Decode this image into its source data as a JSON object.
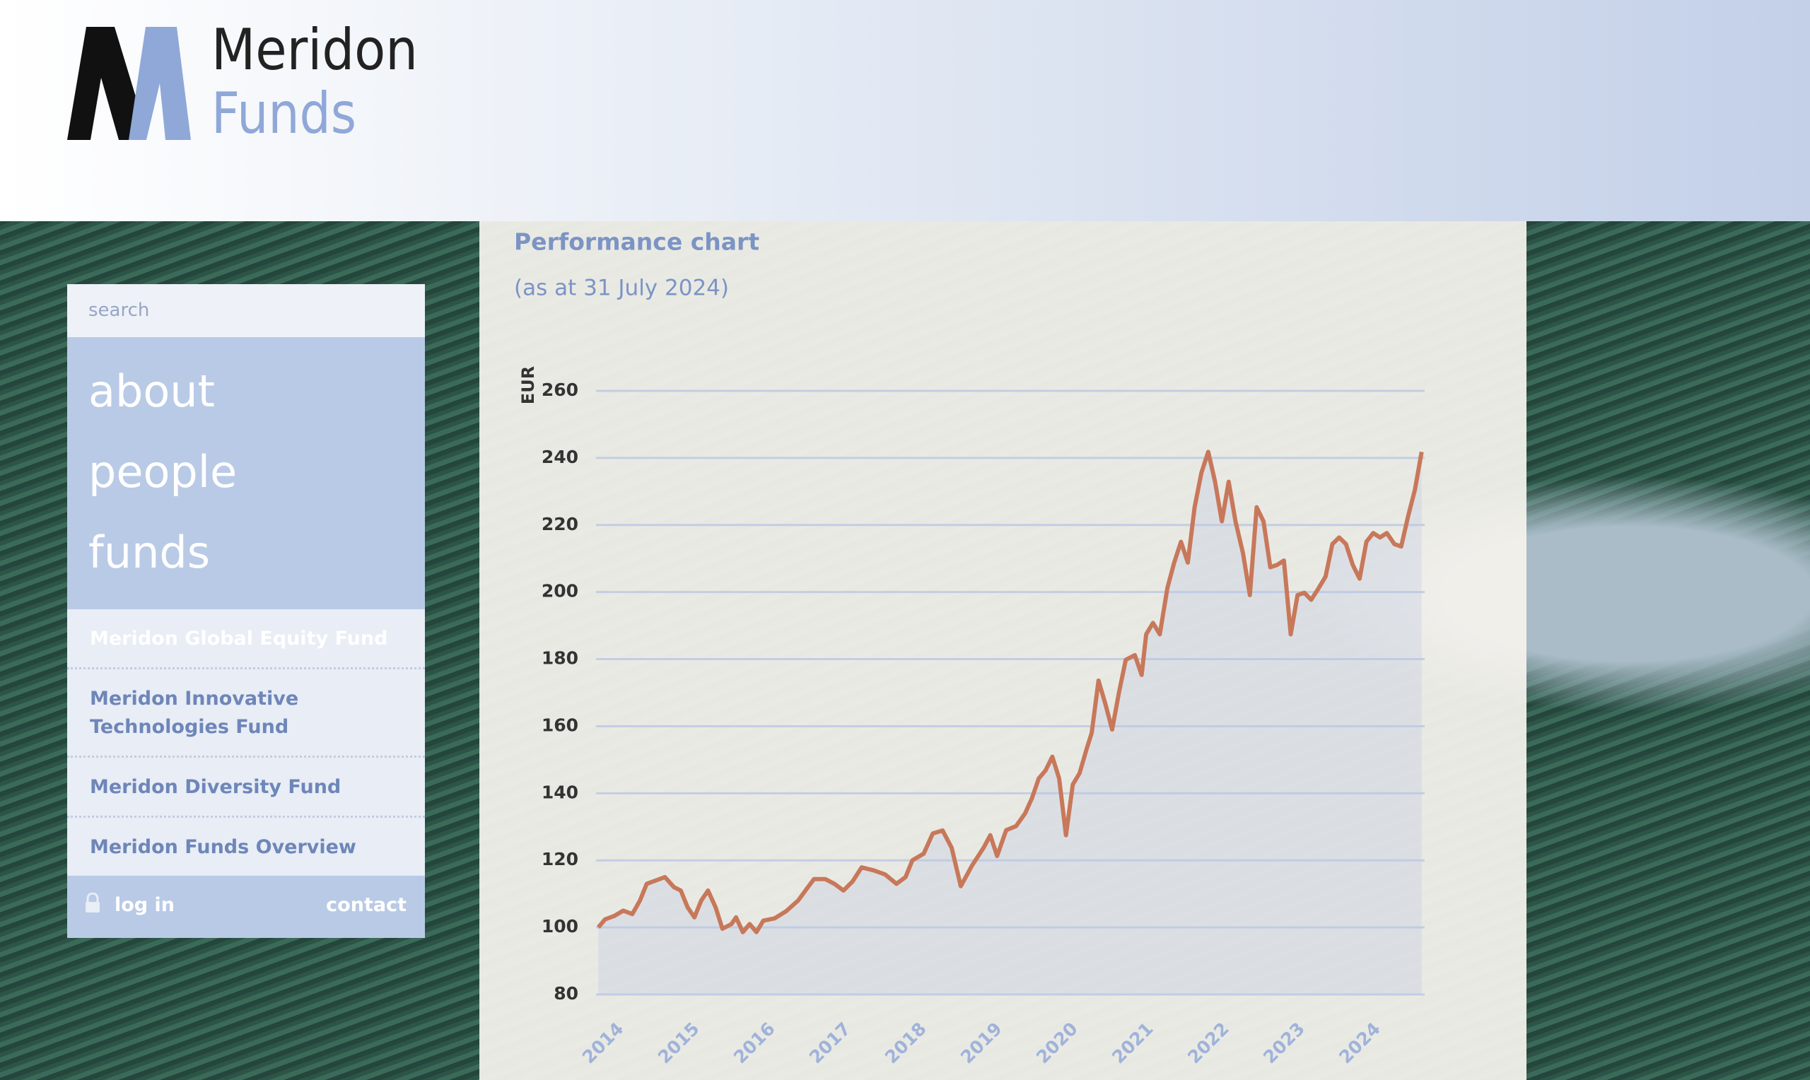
{
  "header": {
    "logo_top": "Meridon",
    "logo_bottom": "Funds"
  },
  "sidebar": {
    "search_placeholder": "search",
    "nav": [
      "about",
      "people",
      "funds"
    ],
    "fund_links": [
      "Meridon Global Equity Fund",
      "Meridon Innovative Technologies Fund",
      "Meridon Diversity Fund",
      "Meridon Funds Overview"
    ],
    "login": "log in",
    "contact": "contact"
  },
  "chart_data": {
    "type": "line",
    "title": "Performance chart",
    "subtitle": "(as at 31 July 2024)",
    "y_label": "EUR",
    "color": "#c8785a",
    "area": true,
    "grid": true,
    "xlim": [
      2013.8,
      2024.75
    ],
    "xticks": [
      2014,
      2015,
      2016,
      2017,
      2018,
      2019,
      2020,
      2021,
      2022,
      2023,
      2024
    ],
    "ylim": [
      80,
      260
    ],
    "yticks": [
      80,
      100,
      120,
      140,
      160,
      180,
      200,
      220,
      240,
      260
    ],
    "x": [
      2013.83,
      2013.92,
      2014.04,
      2014.16,
      2014.28,
      2014.38,
      2014.47,
      2014.59,
      2014.71,
      2014.83,
      2014.92,
      2015.01,
      2015.1,
      2015.19,
      2015.28,
      2015.38,
      2015.47,
      2015.59,
      2015.65,
      2015.74,
      2015.83,
      2015.92,
      2016.01,
      2016.16,
      2016.31,
      2016.47,
      2016.59,
      2016.68,
      2016.83,
      2016.95,
      2017.07,
      2017.19,
      2017.31,
      2017.47,
      2017.62,
      2017.77,
      2017.89,
      2017.98,
      2018.13,
      2018.25,
      2018.38,
      2018.5,
      2018.62,
      2018.77,
      2018.92,
      2019.01,
      2019.1,
      2019.22,
      2019.35,
      2019.47,
      2019.56,
      2019.65,
      2019.74,
      2019.83,
      2019.92,
      2020.01,
      2020.1,
      2020.19,
      2020.28,
      2020.35,
      2020.44,
      2020.53,
      2020.62,
      2020.71,
      2020.8,
      2020.92,
      2021.01,
      2021.07,
      2021.16,
      2021.25,
      2021.35,
      2021.44,
      2021.53,
      2021.62,
      2021.71,
      2021.8,
      2021.89,
      2021.98,
      2022.07,
      2022.16,
      2022.25,
      2022.35,
      2022.44,
      2022.53,
      2022.62,
      2022.71,
      2022.8,
      2022.89,
      2022.98,
      2023.07,
      2023.16,
      2023.25,
      2023.35,
      2023.44,
      2023.53,
      2023.62,
      2023.71,
      2023.8,
      2023.89,
      2023.98,
      2024.07,
      2024.16,
      2024.25,
      2024.35,
      2024.44,
      2024.53,
      2024.62,
      2024.71
    ],
    "values": [
      100,
      102.4,
      103.4,
      105,
      104,
      108,
      113,
      114,
      115,
      112,
      111,
      106,
      103,
      108,
      111,
      106,
      99.6,
      101,
      103,
      98.6,
      101,
      98.6,
      102,
      102.7,
      104.8,
      108,
      111.7,
      114.4,
      114.4,
      113,
      111,
      113.7,
      117.9,
      117,
      115.8,
      113,
      115,
      120,
      122,
      128,
      128.9,
      123.7,
      112.3,
      118.5,
      123.7,
      127.5,
      121.3,
      129,
      130.2,
      134,
      138.5,
      144.4,
      146.8,
      150.9,
      144.4,
      127.5,
      142.6,
      146,
      153,
      158,
      173.6,
      166.7,
      159,
      170,
      179.8,
      181.2,
      175.3,
      187.4,
      190.8,
      187.4,
      201.2,
      208.8,
      215,
      208.8,
      225.3,
      235.6,
      241.8,
      232.9,
      221.1,
      232.9,
      221.1,
      211.5,
      199.1,
      225.3,
      221.1,
      207.4,
      208.1,
      209.4,
      187.4,
      199.1,
      199.8,
      197.7,
      201.2,
      204.6,
      214.3,
      216.3,
      214.3,
      208.1,
      204,
      215,
      217.6,
      216.3,
      217.6,
      214.3,
      213.6,
      222.5,
      230.4,
      241.8
    ]
  }
}
